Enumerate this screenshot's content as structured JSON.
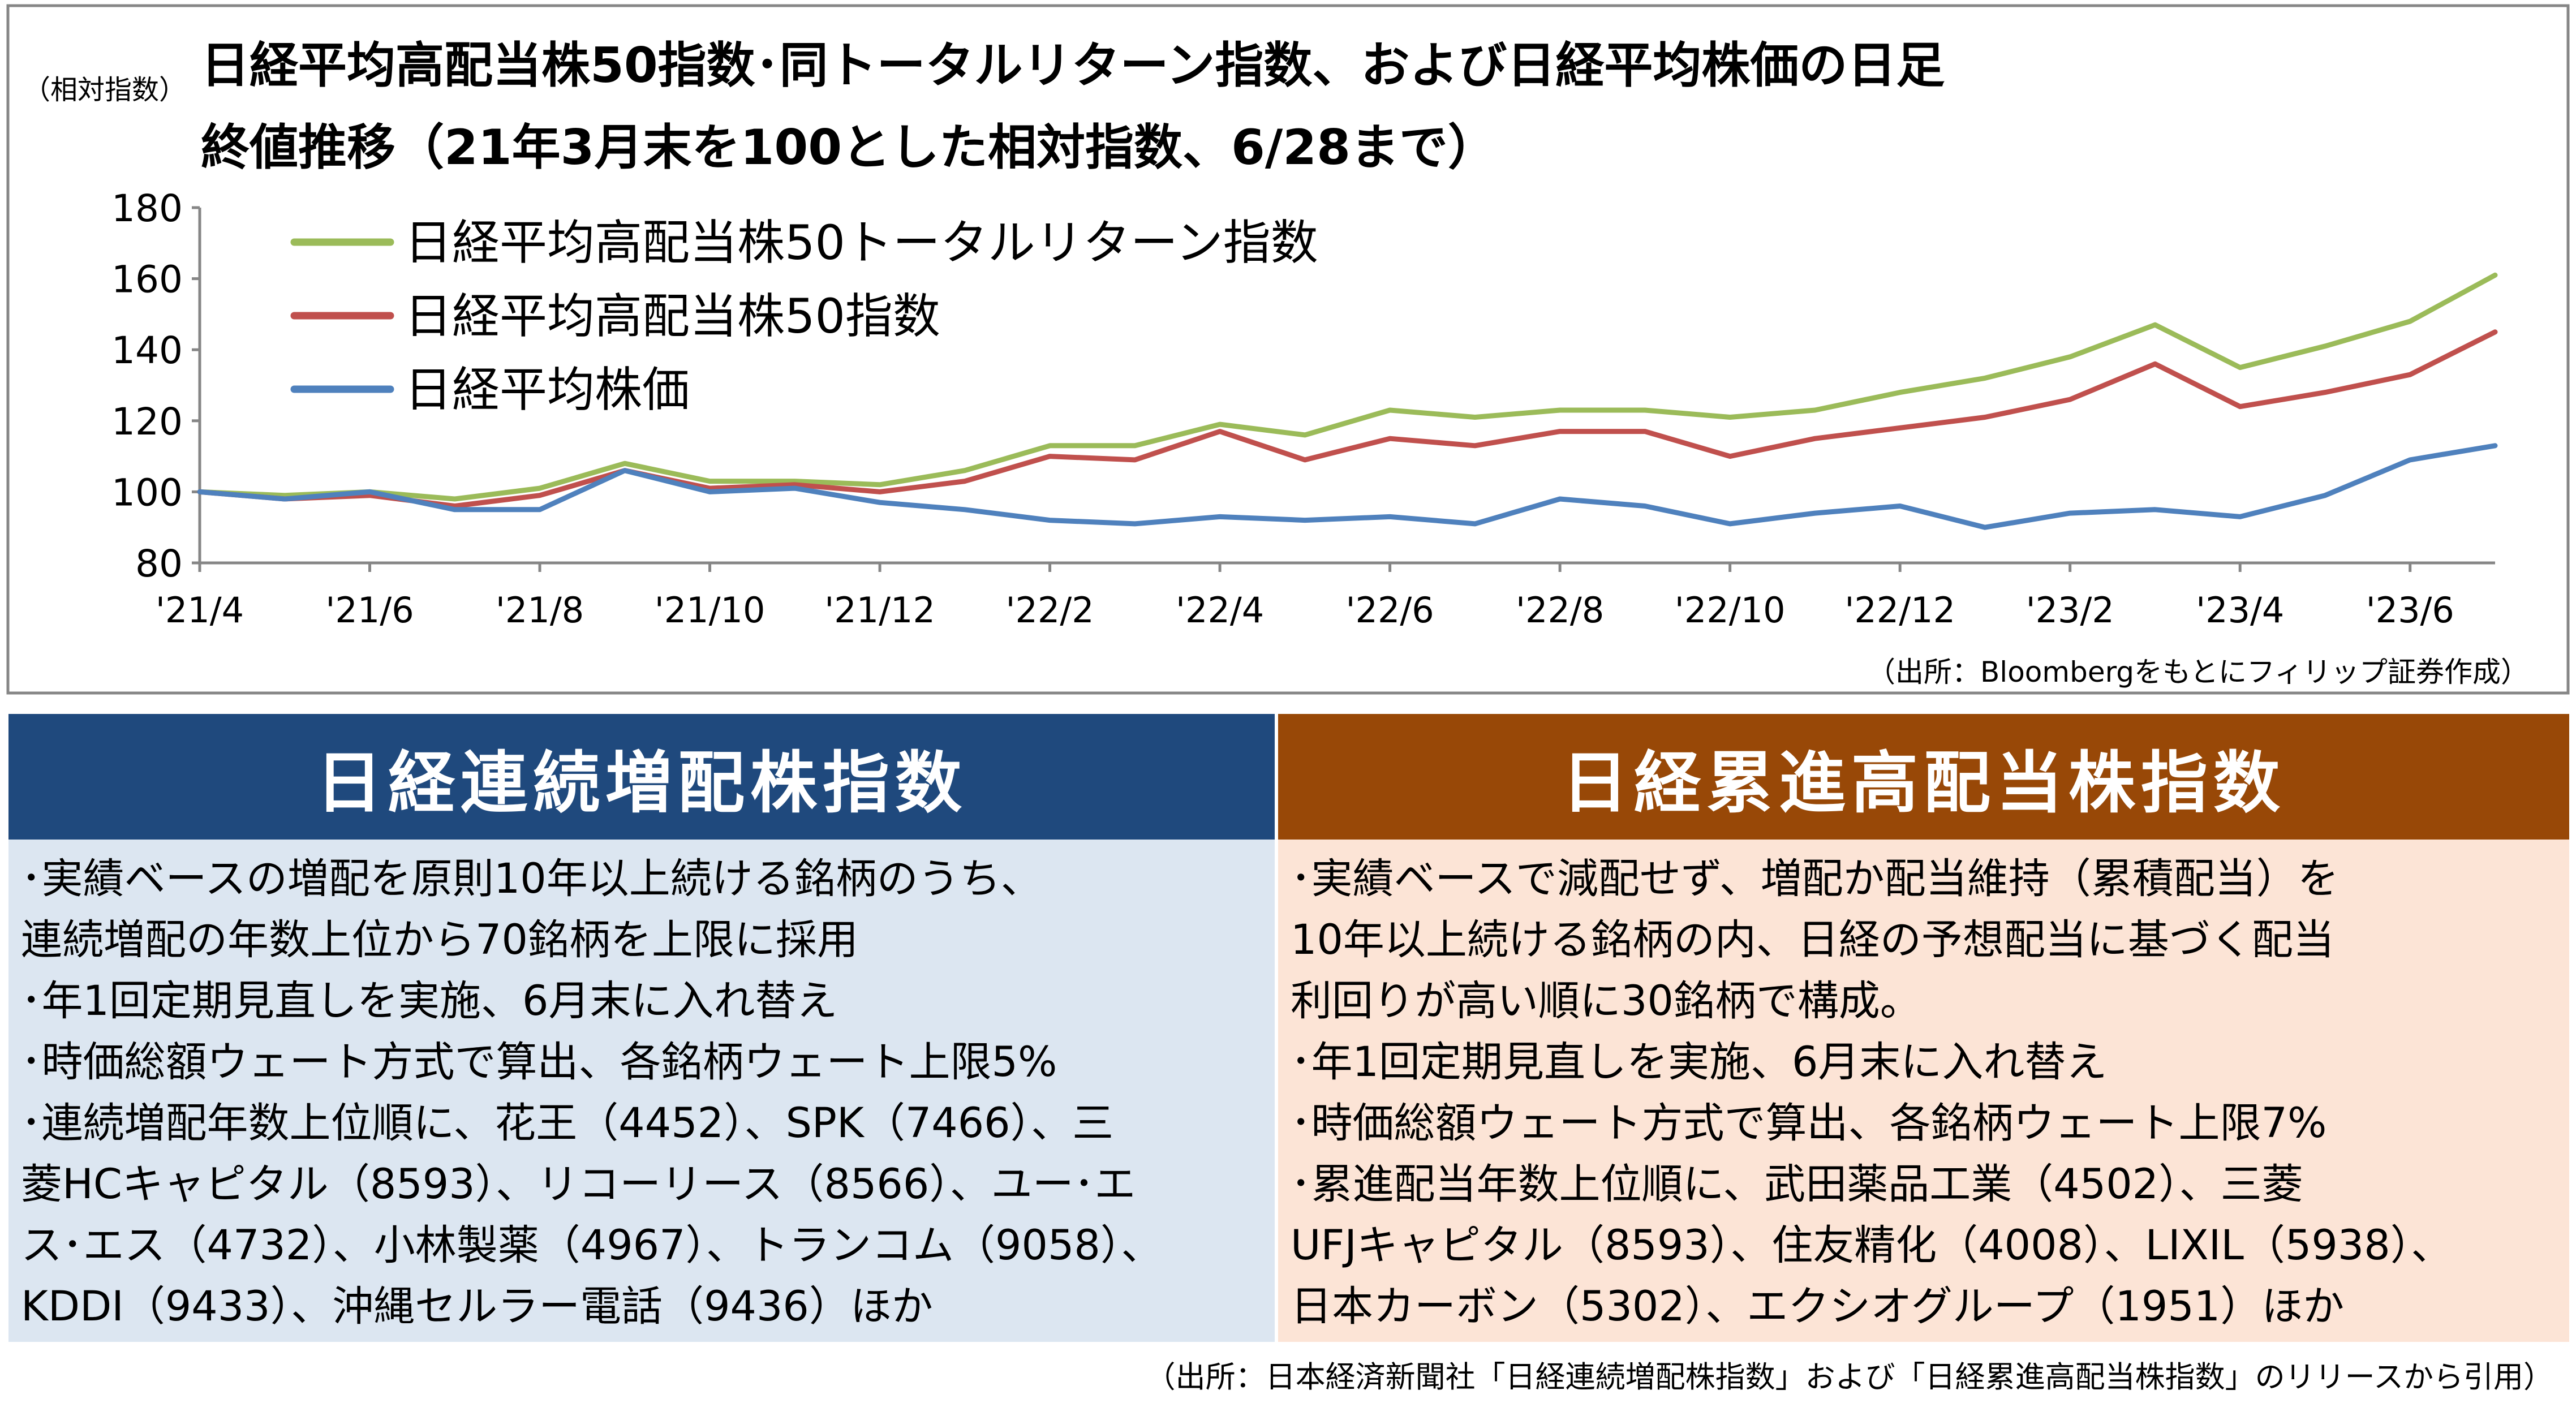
{
  "chart_data": {
    "type": "line",
    "title": "日経平均高配当株50指数･同トータルリターン指数、および日経平均株価の日足",
    "subtitle": "終値推移（21年3月末を100とした相対指数、6/28まで）",
    "ylabel": "（相対指数）",
    "ylim": [
      80,
      180
    ],
    "yticks": [
      "80",
      "100",
      "120",
      "140",
      "160",
      "180"
    ],
    "x_tick_labels": [
      "'21/4",
      "'21/6",
      "'21/8",
      "'21/10",
      "'21/12",
      "'22/2",
      "'22/4",
      "'22/6",
      "'22/8",
      "'22/10",
      "'22/12",
      "'23/2",
      "'23/4",
      "'23/6"
    ],
    "x": [
      "'21/4",
      "'21/5",
      "'21/6",
      "'21/7",
      "'21/8",
      "'21/9",
      "'21/10",
      "'21/11",
      "'21/12",
      "'22/1",
      "'22/2",
      "'22/3",
      "'22/4",
      "'22/5",
      "'22/6",
      "'22/7",
      "'22/8",
      "'22/9",
      "'22/10",
      "'22/11",
      "'22/12",
      "'23/1",
      "'23/2",
      "'23/3",
      "'23/4",
      "'23/5",
      "'23/6",
      "'23/6/28"
    ],
    "series": [
      {
        "name": "日経平均高配当株50トータルリターン指数",
        "color": "#9bbb59",
        "values": [
          100,
          99,
          100,
          98,
          101,
          108,
          103,
          103,
          102,
          106,
          113,
          113,
          119,
          116,
          123,
          121,
          123,
          123,
          121,
          123,
          128,
          132,
          138,
          147,
          135,
          141,
          148,
          161
        ]
      },
      {
        "name": "日経平均高配当株50指数",
        "color": "#c0504d",
        "values": [
          100,
          98,
          99,
          96,
          99,
          106,
          101,
          102,
          100,
          103,
          110,
          109,
          117,
          109,
          115,
          113,
          117,
          117,
          110,
          115,
          118,
          121,
          126,
          136,
          124,
          128,
          133,
          145
        ]
      },
      {
        "name": "日経平均株価",
        "color": "#4f81bd",
        "values": [
          100,
          98,
          100,
          95,
          95,
          106,
          100,
          101,
          97,
          95,
          92,
          91,
          93,
          92,
          93,
          91,
          98,
          96,
          91,
          94,
          96,
          90,
          94,
          95,
          93,
          99,
          109,
          113
        ]
      }
    ],
    "legend_position": "top-left",
    "grid": false,
    "source": "（出所：Bloombergをもとにフィリップ証券作成）"
  },
  "left_box": {
    "title": "日経連続増配株指数",
    "lines": [
      "･実績ベースの増配を原則10年以上続ける銘柄のうち、",
      "連続増配の年数上位から70銘柄を上限に採用",
      "･年1回定期見直しを実施、6月末に入れ替え",
      "･時価総額ウェート方式で算出、各銘柄ウェート上限5%",
      "･連続増配年数上位順に、花王（4452）、SPK（7466）、三",
      "菱HCキャピタル（8593）、リコーリース（8566）、ユー･エ",
      "ス･エス（4732）、小林製薬（4967）、トランコム（9058）、",
      "KDDI（9433）、沖縄セルラー電話（9436）ほか"
    ]
  },
  "right_box": {
    "title": "日経累進高配当株指数",
    "lines": [
      "･実績ベースで減配せず、増配か配当維持（累積配当）を",
      "10年以上続ける銘柄の内、日経の予想配当に基づく配当",
      "利回りが高い順に30銘柄で構成。",
      "･年1回定期見直しを実施、6月末に入れ替え",
      "･時価総額ウェート方式で算出、各銘柄ウェート上限7%",
      "･累進配当年数上位順に、武田薬品工業（4502）、三菱",
      "UFJキャピタル（8593）、住友精化（4008）、LIXIL（5938）、",
      "日本カーボン（5302）、エクシオグループ（1951）ほか"
    ]
  },
  "footer_source": "（出所：日本経済新聞社「日経連続増配株指数」および「日経累進高配当株指数」のリリースから引用）"
}
